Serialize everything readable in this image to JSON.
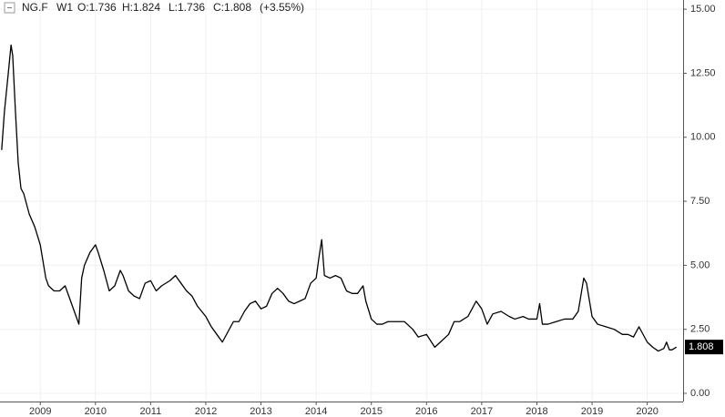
{
  "chart_data": {
    "type": "line",
    "header": {
      "symbol": "NG.F",
      "interval": "W1",
      "open": "O:1.736",
      "high": "H:1.824",
      "low": "L:1.736",
      "close": "C:1.808",
      "change": "(+3.55%)"
    },
    "last_value": 1.808,
    "color": "#000000",
    "x": [
      2008.3,
      2008.35,
      2008.42,
      2008.47,
      2008.5,
      2008.55,
      2008.6,
      2008.65,
      2008.7,
      2008.8,
      2008.9,
      2009.0,
      2009.1,
      2009.15,
      2009.25,
      2009.35,
      2009.45,
      2009.55,
      2009.65,
      2009.7,
      2009.75,
      2009.8,
      2009.9,
      2010.0,
      2010.05,
      2010.15,
      2010.25,
      2010.35,
      2010.45,
      2010.5,
      2010.6,
      2010.7,
      2010.8,
      2010.9,
      2011.0,
      2011.1,
      2011.2,
      2011.35,
      2011.45,
      2011.55,
      2011.65,
      2011.75,
      2011.85,
      2012.0,
      2012.1,
      2012.2,
      2012.3,
      2012.4,
      2012.5,
      2012.6,
      2012.7,
      2012.8,
      2012.9,
      2013.0,
      2013.1,
      2013.2,
      2013.3,
      2013.4,
      2013.5,
      2013.6,
      2013.7,
      2013.8,
      2013.9,
      2014.0,
      2014.05,
      2014.1,
      2014.15,
      2014.25,
      2014.35,
      2014.45,
      2014.55,
      2014.65,
      2014.75,
      2014.85,
      2014.9,
      2015.0,
      2015.1,
      2015.2,
      2015.3,
      2015.45,
      2015.6,
      2015.75,
      2015.85,
      2016.0,
      2016.15,
      2016.25,
      2016.4,
      2016.5,
      2016.6,
      2016.75,
      2016.9,
      2017.0,
      2017.1,
      2017.2,
      2017.35,
      2017.5,
      2017.6,
      2017.75,
      2017.85,
      2018.0,
      2018.05,
      2018.1,
      2018.2,
      2018.35,
      2018.5,
      2018.65,
      2018.75,
      2018.85,
      2018.9,
      2019.0,
      2019.1,
      2019.25,
      2019.4,
      2019.55,
      2019.65,
      2019.75,
      2019.85,
      2019.9,
      2020.0,
      2020.1,
      2020.2,
      2020.3,
      2020.35,
      2020.4,
      2020.45,
      2020.53
    ],
    "values": [
      9.5,
      11,
      12.5,
      13.6,
      13.2,
      11,
      9,
      8,
      7.8,
      7,
      6.5,
      5.8,
      4.5,
      4.2,
      4.0,
      4.0,
      4.2,
      3.6,
      3.0,
      2.7,
      4.5,
      5.0,
      5.5,
      5.8,
      5.5,
      4.8,
      4.0,
      4.2,
      4.8,
      4.6,
      4.0,
      3.8,
      3.7,
      4.3,
      4.4,
      4.0,
      4.2,
      4.4,
      4.6,
      4.3,
      4.0,
      3.8,
      3.4,
      3.0,
      2.6,
      2.3,
      2.0,
      2.4,
      2.8,
      2.8,
      3.2,
      3.5,
      3.6,
      3.3,
      3.4,
      3.9,
      4.1,
      3.9,
      3.6,
      3.5,
      3.6,
      3.7,
      4.3,
      4.5,
      5.3,
      6.0,
      4.6,
      4.5,
      4.6,
      4.5,
      4.0,
      3.9,
      3.9,
      4.2,
      3.6,
      2.9,
      2.7,
      2.7,
      2.8,
      2.8,
      2.8,
      2.5,
      2.2,
      2.3,
      1.8,
      2.0,
      2.3,
      2.8,
      2.8,
      3.0,
      3.6,
      3.3,
      2.7,
      3.1,
      3.2,
      3.0,
      2.9,
      3.0,
      2.9,
      2.9,
      3.5,
      2.7,
      2.7,
      2.8,
      2.9,
      2.9,
      3.2,
      4.5,
      4.3,
      3.0,
      2.7,
      2.6,
      2.5,
      2.3,
      2.3,
      2.2,
      2.6,
      2.4,
      2.0,
      1.8,
      1.65,
      1.75,
      2.0,
      1.7,
      1.7,
      1.808
    ],
    "xlim": [
      2008.27,
      2020.65
    ],
    "xticks": [
      2009,
      2010,
      2011,
      2012,
      2013,
      2014,
      2015,
      2016,
      2017,
      2018,
      2019,
      2020
    ],
    "ylim": [
      -0.32,
      15.36
    ],
    "yticks": [
      {
        "value": 0,
        "label": "0.00"
      },
      {
        "value": 2.5,
        "label": "2.50"
      },
      {
        "value": 5,
        "label": "5.00"
      },
      {
        "value": 7.5,
        "label": "7.50"
      },
      {
        "value": 10,
        "label": "10.00"
      },
      {
        "value": 12.5,
        "label": "12.50"
      },
      {
        "value": 15,
        "label": "15.00"
      }
    ],
    "grid": true
  }
}
